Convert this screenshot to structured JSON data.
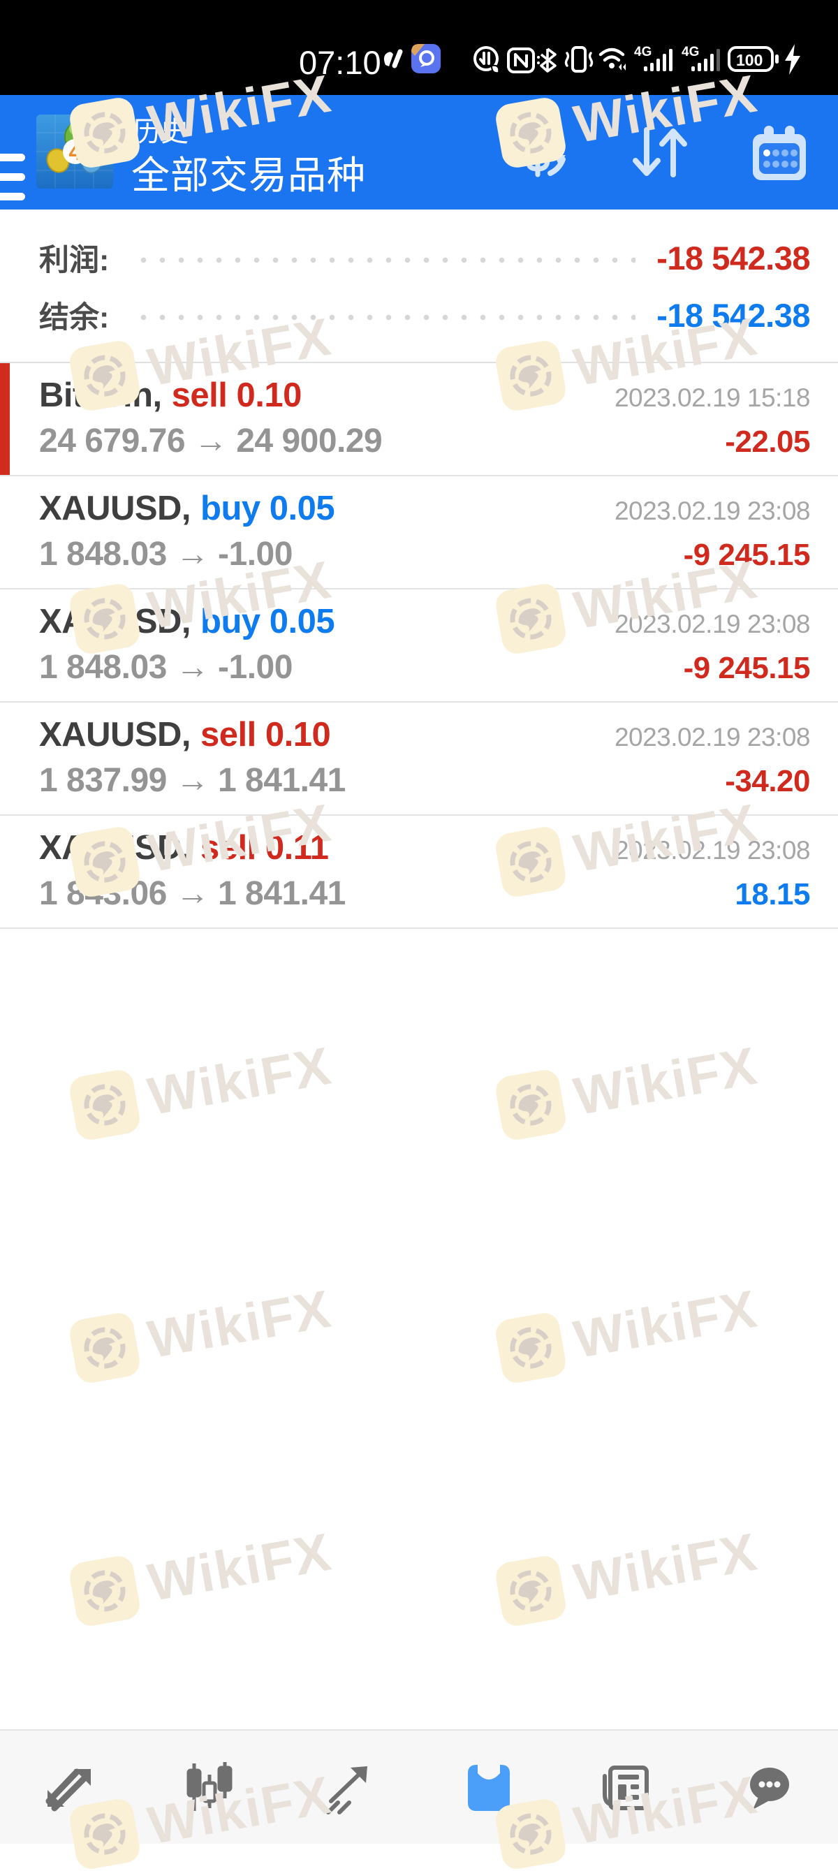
{
  "colors": {
    "header_blue": "#1b74f0",
    "nav_active_blue": "#4b9ff9",
    "negative_red": "#d02a1e",
    "positive_blue": "#0e7bee",
    "accent_bar_red": "#d32a1e"
  },
  "status_bar": {
    "time": "07:10",
    "battery_level": "100",
    "network_badge_1": "4G",
    "network_badge_2": "4G"
  },
  "header": {
    "title": "历史",
    "subtitle": "全部交易品种"
  },
  "summary": {
    "profit_label": "利润:",
    "profit_value": "-18 542.38",
    "balance_label": "结余:",
    "balance_value": "-18 542.38"
  },
  "trades": [
    {
      "symbol": "Bitcoin,",
      "side": "sell 0.10",
      "side_type": "sell",
      "datetime": "2023.02.19 15:18",
      "prices": "24 679.76 → 24 900.29",
      "profit": "-22.05",
      "profit_type": "loss",
      "accent": true
    },
    {
      "symbol": "XAUUSD,",
      "side": "buy 0.05",
      "side_type": "buy",
      "datetime": "2023.02.19 23:08",
      "prices": "1 848.03 → -1.00",
      "profit": "-9 245.15",
      "profit_type": "loss",
      "accent": false
    },
    {
      "symbol": "XAUUSD,",
      "side": "buy 0.05",
      "side_type": "buy",
      "datetime": "2023.02.19 23:08",
      "prices": "1 848.03 → -1.00",
      "profit": "-9 245.15",
      "profit_type": "loss",
      "accent": false
    },
    {
      "symbol": "XAUUSD,",
      "side": "sell 0.10",
      "side_type": "sell",
      "datetime": "2023.02.19 23:08",
      "prices": "1 837.99 → 1 841.41",
      "profit": "-34.20",
      "profit_type": "loss",
      "accent": false
    },
    {
      "symbol": "XAUUSD,",
      "side": "sell 0.11",
      "side_type": "sell",
      "datetime": "2023.02.19 23:08",
      "prices": "1 843.06 → 1 841.41",
      "profit": "18.15",
      "profit_type": "profit",
      "accent": false
    }
  ],
  "watermark": {
    "text": "WikiFX"
  },
  "bottom_nav": {
    "items": [
      "quotes",
      "charts",
      "trade",
      "history",
      "news",
      "messages"
    ],
    "active": "history"
  }
}
